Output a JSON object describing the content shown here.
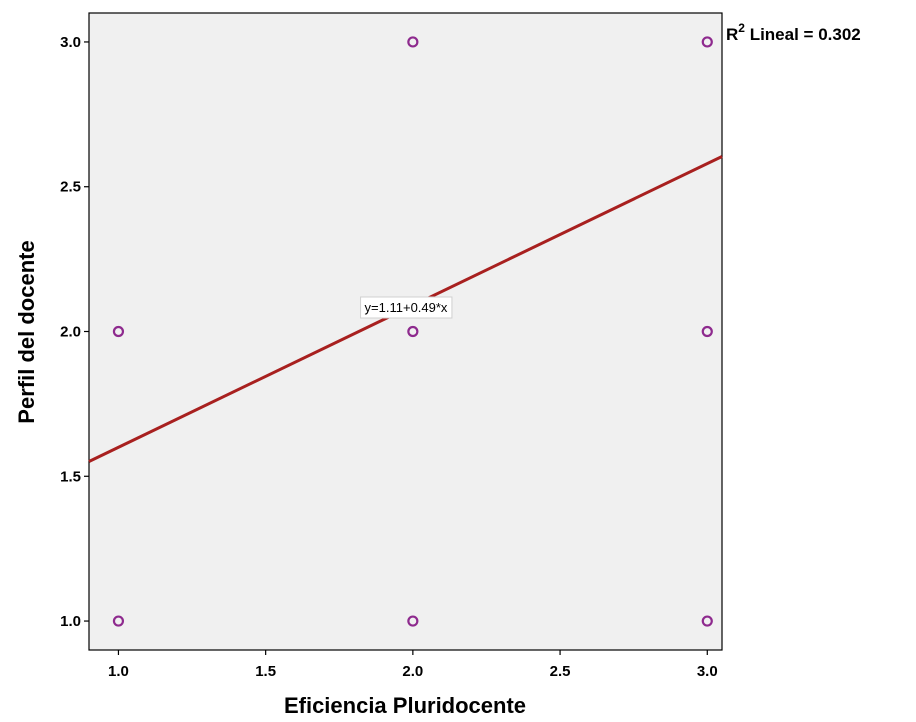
{
  "chart_data": {
    "type": "scatter",
    "xlabel": "Eficiencia Pluridocente",
    "ylabel": "Perfil del docente",
    "xlim": [
      0.9,
      3.05
    ],
    "ylim": [
      0.9,
      3.1
    ],
    "xticks": [
      "1.0",
      "1.5",
      "2.0",
      "2.5",
      "3.0"
    ],
    "yticks": [
      "1.0",
      "1.5",
      "2.0",
      "2.5",
      "3.0"
    ],
    "grid": false,
    "background_color": "#f0f0f0",
    "marker_color": "#8e2a8e",
    "fit_line_color": "#a8201f",
    "points": [
      {
        "x": 1,
        "y": 1
      },
      {
        "x": 1,
        "y": 2
      },
      {
        "x": 2,
        "y": 1
      },
      {
        "x": 2,
        "y": 2
      },
      {
        "x": 2,
        "y": 3
      },
      {
        "x": 3,
        "y": 1
      },
      {
        "x": 3,
        "y": 2
      },
      {
        "x": 3,
        "y": 3
      }
    ],
    "fit_line": {
      "intercept": 1.11,
      "slope": 0.49
    },
    "equation_label": "y=1.11+0.49*x",
    "r2_prefix": "R",
    "r2_superscript": "2",
    "r2_text": " Lineal = 0.302"
  }
}
